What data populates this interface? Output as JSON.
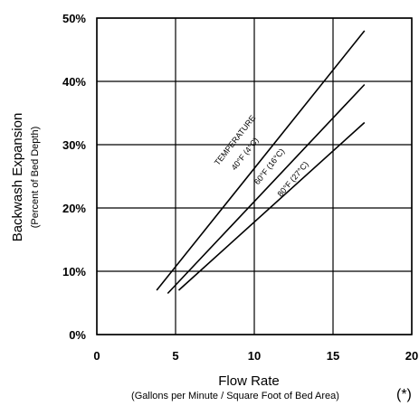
{
  "chart_data": {
    "type": "line",
    "x": [
      4,
      17
    ],
    "series": [
      {
        "name": "40°F (4°C)",
        "values": [
          7,
          48
        ]
      },
      {
        "name": "60°F (16°C)",
        "values": [
          6.5,
          39.5
        ]
      },
      {
        "name": "80°F (27°C)",
        "values": [
          7,
          33.5
        ]
      }
    ],
    "series_x": [
      [
        3.8,
        17
      ],
      [
        4.5,
        17
      ],
      [
        5.2,
        17
      ]
    ],
    "xlim": [
      0,
      20
    ],
    "ylim": [
      0,
      50
    ],
    "xticks": [
      0,
      5,
      10,
      15,
      20
    ],
    "yticks": [
      0,
      10,
      20,
      30,
      40,
      50
    ],
    "xtick_labels": [
      "0",
      "5",
      "10",
      "15",
      "20"
    ],
    "ytick_labels": [
      "0%",
      "10%",
      "20%",
      "30%",
      "40%",
      "50%"
    ],
    "xlabel": "Flow Rate",
    "xlabel_sub": "(Gallons per Minute / Square Foot of Bed Area)",
    "ylabel": "Backwash Expansion",
    "ylabel_sub": "(Percent of Bed Depth)",
    "annotation_header": "TEMPERATURE",
    "footnote": "(*)",
    "grid": true,
    "legend": "none"
  }
}
